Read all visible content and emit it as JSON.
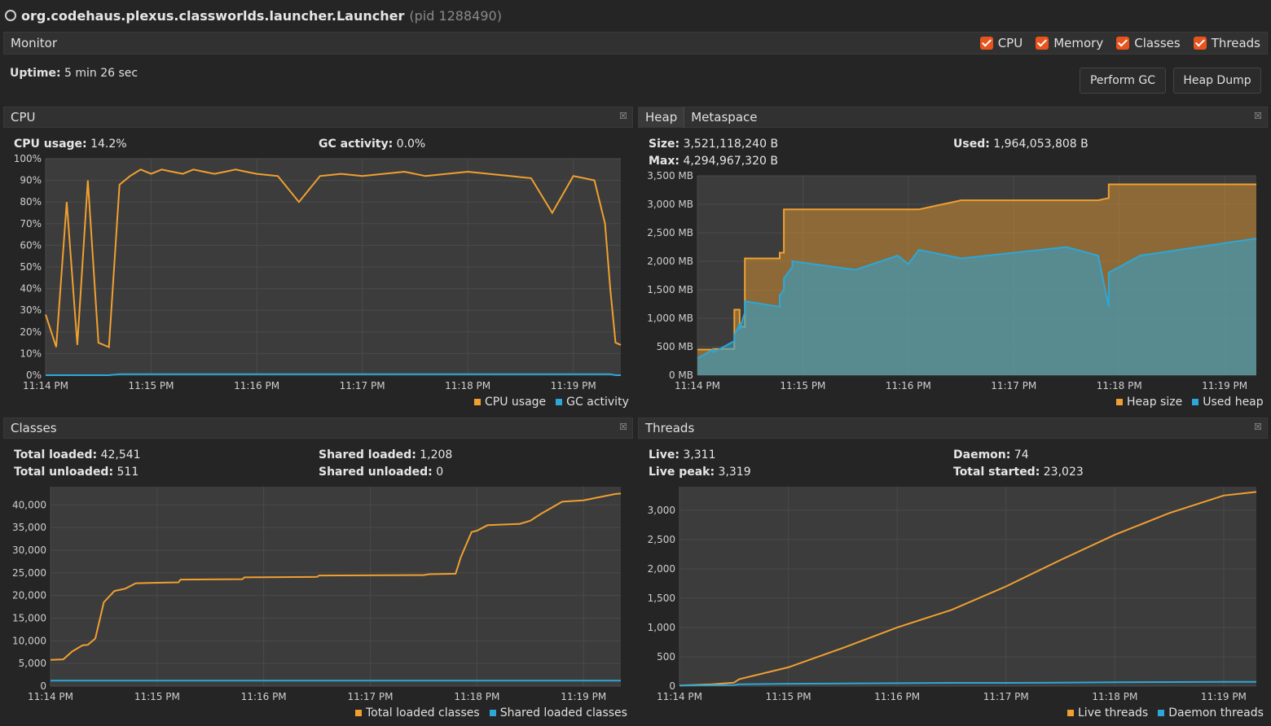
{
  "window": {
    "title": "org.codehaus.plexus.classworlds.launcher.Launcher",
    "pid": "(pid 1288490)"
  },
  "monitor": {
    "label": "Monitor",
    "checkboxes": [
      {
        "label": "CPU"
      },
      {
        "label": "Memory"
      },
      {
        "label": "Classes"
      },
      {
        "label": "Threads"
      }
    ],
    "uptime_label": "Uptime:",
    "uptime_value": "5 min 26 sec",
    "perform_gc": "Perform GC",
    "heap_dump": "Heap Dump"
  },
  "cpu": {
    "title": "CPU",
    "usage_label": "CPU usage:",
    "usage_value": "14.2%",
    "gc_label": "GC activity:",
    "gc_value": "0.0%",
    "legend": [
      "CPU usage",
      "GC activity"
    ]
  },
  "heap": {
    "tabs": [
      "Heap",
      "Metaspace"
    ],
    "size_label": "Size:",
    "size_value": "3,521,118,240 B",
    "used_label": "Used:",
    "used_value": "1,964,053,808 B",
    "max_label": "Max:",
    "max_value": "4,294,967,320 B",
    "legend": [
      "Heap size",
      "Used heap"
    ]
  },
  "classes": {
    "title": "Classes",
    "total_loaded_label": "Total loaded:",
    "total_loaded_value": "42,541",
    "shared_loaded_label": "Shared loaded:",
    "shared_loaded_value": "1,208",
    "total_unloaded_label": "Total unloaded:",
    "total_unloaded_value": "511",
    "shared_unloaded_label": "Shared unloaded:",
    "shared_unloaded_value": "0",
    "legend": [
      "Total loaded classes",
      "Shared loaded classes"
    ]
  },
  "threads": {
    "title": "Threads",
    "live_label": "Live:",
    "live_value": "3,311",
    "daemon_label": "Daemon:",
    "daemon_value": "74",
    "live_peak_label": "Live peak:",
    "live_peak_value": "3,319",
    "total_started_label": "Total started:",
    "total_started_value": "23,023",
    "legend": [
      "Live threads",
      "Daemon threads"
    ]
  },
  "colors": {
    "orange": "#f0a030",
    "blue": "#2ca7d8",
    "plot_bg": "#3c3c3c",
    "grid": "#4a4a4a"
  },
  "chart_data": [
    {
      "id": "cpu",
      "type": "line",
      "x": [
        0,
        0.1,
        0.2,
        0.3,
        0.4,
        0.5,
        0.6,
        0.7,
        0.8,
        0.9,
        1.0,
        1.1,
        1.2,
        1.3,
        1.4,
        1.5,
        1.6,
        1.7,
        1.8,
        1.9,
        2.0,
        2.2,
        2.4,
        2.6,
        2.8,
        3.0,
        3.2,
        3.4,
        3.6,
        3.8,
        4.0,
        4.2,
        4.4,
        4.6,
        4.8,
        5.0,
        5.1,
        5.2,
        5.3,
        5.35,
        5.4,
        5.45
      ],
      "xlim": [
        0,
        5.45
      ],
      "xticks": [
        0,
        1,
        2,
        3,
        4,
        5
      ],
      "xtick_labels": [
        "11:14 PM",
        "11:15 PM",
        "11:16 PM",
        "11:17 PM",
        "11:18 PM",
        "11:19 PM"
      ],
      "ylim": [
        0,
        100
      ],
      "yticks": [
        0,
        10,
        20,
        30,
        40,
        50,
        60,
        70,
        80,
        90,
        100
      ],
      "ytick_labels": [
        "0%",
        "10%",
        "20%",
        "30%",
        "40%",
        "50%",
        "60%",
        "70%",
        "80%",
        "90%",
        "100%"
      ],
      "series": [
        {
          "name": "CPU usage",
          "color": "#f0a030",
          "values": [
            28,
            13,
            80,
            14,
            90,
            15,
            13,
            88,
            92,
            95,
            93,
            95,
            94,
            93,
            95,
            94,
            93,
            94,
            95,
            94,
            93,
            92,
            80,
            92,
            93,
            92,
            93,
            94,
            92,
            93,
            94,
            93,
            92,
            91,
            75,
            92,
            91,
            90,
            70,
            40,
            15,
            14
          ]
        },
        {
          "name": "GC activity",
          "color": "#2ca7d8",
          "values": [
            0,
            0,
            0,
            0,
            0,
            0,
            0,
            0.5,
            0.5,
            0.5,
            0.5,
            0.5,
            0.5,
            0.5,
            0.5,
            0.5,
            0.5,
            0.5,
            0.5,
            0.5,
            0.5,
            0.5,
            0.5,
            0.5,
            0.5,
            0.5,
            0.5,
            0.5,
            0.5,
            0.5,
            0.5,
            0.5,
            0.5,
            0.5,
            0.5,
            0.5,
            0.5,
            0.5,
            0.5,
            0.5,
            0,
            0
          ]
        }
      ]
    },
    {
      "id": "heap",
      "type": "area",
      "x": [
        0,
        0.15,
        0.15,
        0.35,
        0.35,
        0.4,
        0.4,
        0.45,
        0.45,
        0.78,
        0.78,
        0.82,
        0.82,
        0.9,
        0.9,
        1.5,
        1.9,
        2.0,
        2.1,
        2.5,
        3.5,
        3.8,
        3.9,
        3.9,
        4.2,
        5.3
      ],
      "xlim": [
        0,
        5.3
      ],
      "xticks": [
        0,
        1,
        2,
        3,
        4,
        5
      ],
      "xtick_labels": [
        "11:14 PM",
        "11:15 PM",
        "11:16 PM",
        "11:17 PM",
        "11:18 PM",
        "11:19 PM"
      ],
      "ylim": [
        0,
        3500
      ],
      "yticks": [
        0,
        500,
        1000,
        1500,
        2000,
        2500,
        3000,
        3500
      ],
      "ytick_labels": [
        "0 MB",
        "500 MB",
        "1,000 MB",
        "1,500 MB",
        "2,000 MB",
        "2,500 MB",
        "3,000 MB",
        "3,500 MB"
      ],
      "series": [
        {
          "name": "Heap size",
          "color": "#f0a030",
          "values": [
            450,
            450,
            460,
            460,
            1150,
            1150,
            850,
            850,
            2050,
            2050,
            2150,
            2150,
            2910,
            2910,
            2910,
            2910,
            2910,
            2910,
            2910,
            3070,
            3070,
            3070,
            3110,
            3350,
            3350,
            3350
          ]
        },
        {
          "name": "Used heap",
          "color": "#2ca7d8",
          "values": [
            300,
            450,
            400,
            600,
            700,
            900,
            800,
            1100,
            1300,
            1200,
            1400,
            1500,
            1700,
            1900,
            2000,
            1850,
            2100,
            1950,
            2200,
            2050,
            2250,
            2100,
            1200,
            1800,
            2100,
            2400
          ]
        }
      ]
    },
    {
      "id": "classes",
      "type": "line",
      "x": [
        0,
        0.12,
        0.2,
        0.3,
        0.35,
        0.42,
        0.5,
        0.6,
        0.7,
        0.8,
        1.0,
        1.2,
        1.22,
        1.8,
        1.82,
        2.5,
        2.52,
        3.5,
        3.55,
        3.8,
        3.85,
        3.95,
        4.0,
        4.1,
        4.4,
        4.5,
        4.6,
        4.8,
        5.0,
        5.3,
        5.35
      ],
      "xlim": [
        0,
        5.35
      ],
      "xticks": [
        0,
        1,
        2,
        3,
        4,
        5
      ],
      "xtick_labels": [
        "11:14 PM",
        "11:15 PM",
        "11:16 PM",
        "11:17 PM",
        "11:18 PM",
        "11:19 PM"
      ],
      "ylim": [
        0,
        44000
      ],
      "yticks": [
        0,
        5000,
        10000,
        15000,
        20000,
        25000,
        30000,
        35000,
        40000
      ],
      "ytick_labels": [
        "0",
        "5,000",
        "10,000",
        "15,000",
        "20,000",
        "25,000",
        "30,000",
        "35,000",
        "40,000"
      ],
      "series": [
        {
          "name": "Total loaded classes",
          "color": "#f0a030",
          "values": [
            5800,
            5900,
            7600,
            9000,
            9100,
            10500,
            18500,
            21000,
            21500,
            22700,
            22800,
            22900,
            23500,
            23600,
            24000,
            24100,
            24400,
            24500,
            24700,
            24800,
            28500,
            34000,
            34300,
            35500,
            35800,
            36500,
            38000,
            40700,
            41000,
            42400,
            42500
          ]
        },
        {
          "name": "Shared loaded classes",
          "color": "#2ca7d8",
          "values": [
            1208,
            1208,
            1208,
            1208,
            1208,
            1208,
            1208,
            1208,
            1208,
            1208,
            1208,
            1208,
            1208,
            1208,
            1208,
            1208,
            1208,
            1208,
            1208,
            1208,
            1208,
            1208,
            1208,
            1208,
            1208,
            1208,
            1208,
            1208,
            1208,
            1208,
            1208
          ]
        }
      ]
    },
    {
      "id": "threads",
      "type": "line",
      "x": [
        0,
        0.3,
        0.5,
        0.55,
        1.0,
        1.5,
        2.0,
        2.5,
        3.0,
        3.5,
        4.0,
        4.5,
        5.0,
        5.3
      ],
      "xlim": [
        0,
        5.3
      ],
      "xticks": [
        0,
        1,
        2,
        3,
        4,
        5
      ],
      "xtick_labels": [
        "11:14 PM",
        "11:15 PM",
        "11:16 PM",
        "11:17 PM",
        "11:18 PM",
        "11:19 PM"
      ],
      "ylim": [
        0,
        3400
      ],
      "yticks": [
        0,
        500,
        1000,
        1500,
        2000,
        2500,
        3000
      ],
      "ytick_labels": [
        "0",
        "500",
        "1,000",
        "1,500",
        "2,000",
        "2,500",
        "3,000"
      ],
      "series": [
        {
          "name": "Live threads",
          "color": "#f0a030",
          "values": [
            10,
            30,
            60,
            120,
            320,
            650,
            1000,
            1300,
            1700,
            2150,
            2580,
            2950,
            3250,
            3311
          ]
        },
        {
          "name": "Daemon threads",
          "color": "#2ca7d8",
          "values": [
            10,
            15,
            20,
            30,
            40,
            45,
            50,
            55,
            55,
            60,
            65,
            70,
            72,
            74
          ]
        }
      ]
    }
  ]
}
